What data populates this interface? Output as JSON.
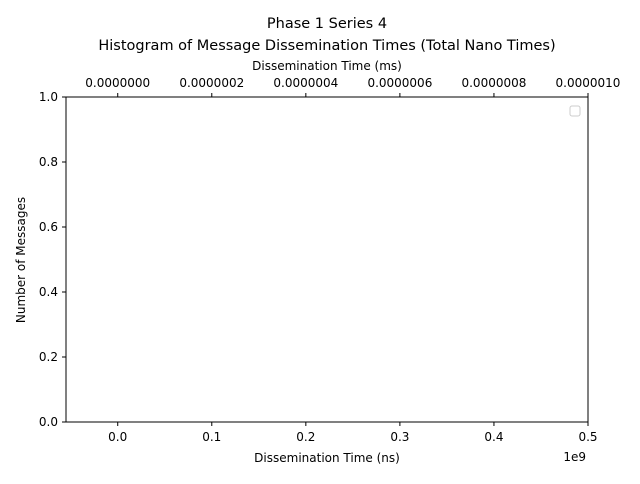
{
  "chart_data": {
    "type": "bar",
    "title": "Phase 1 Series 4",
    "subtitle": "Histogram of Message Dissemination Times (Total Nano Times)",
    "xlabel": "Dissemination Time (ns)",
    "x_top_label": "Dissemination Time (ms)",
    "ylabel": "Number of Messages",
    "x_offset_text": "1e9",
    "xlim": [
      -0.055,
      0.5
    ],
    "x_ticks": [
      0.0,
      0.1,
      0.2,
      0.3,
      0.4,
      0.5
    ],
    "x_tick_labels": [
      "0.0",
      "0.1",
      "0.2",
      "0.3",
      "0.4",
      "0.5"
    ],
    "x_top_ticks": [
      0.0,
      2e-07,
      4e-07,
      6e-07,
      8e-07,
      1e-06
    ],
    "x_top_tick_labels": [
      "0.0000000",
      "0.0000002",
      "0.0000004",
      "0.0000006",
      "0.0000008",
      "0.0000010"
    ],
    "x_top_lim": [
      -1.1e-07,
      1e-06
    ],
    "ylim": [
      0.0,
      1.0
    ],
    "y_ticks": [
      0.0,
      0.2,
      0.4,
      0.6,
      0.8,
      1.0
    ],
    "y_tick_labels": [
      "0.0",
      "0.2",
      "0.4",
      "0.6",
      "0.8",
      "1.0"
    ],
    "series": [],
    "legend": {
      "position": "top-right",
      "entries": []
    },
    "grid": false
  }
}
